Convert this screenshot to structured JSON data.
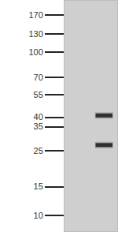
{
  "chart_data": {
    "type": "blot",
    "log": "y",
    "grid": false,
    "tick_labels": "y",
    "ylim": [
      8,
      207
    ],
    "yticks": [
      170,
      130,
      100,
      70,
      55,
      40,
      35,
      25,
      15,
      10
    ],
    "xlim": [
      0.5,
      2.5
    ],
    "bands": [
      {
        "lane": 2,
        "value": 41
      },
      {
        "lane": 2,
        "value": 27
      }
    ],
    "color": "#2f2f2f"
  }
}
